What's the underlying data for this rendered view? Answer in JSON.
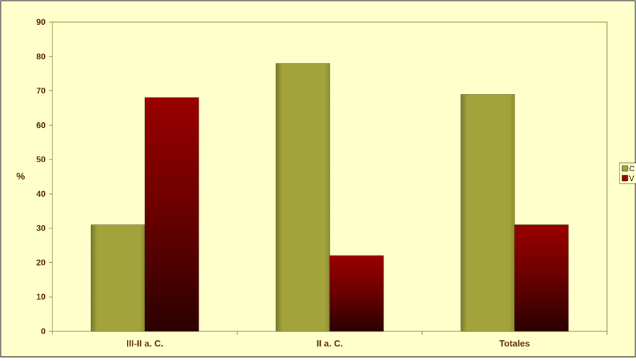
{
  "colors": {
    "background": "#FFFFCC",
    "border": "#000000",
    "axis": "#8B8B3A",
    "text": "#5C2E00",
    "olive": "#A3A33C",
    "olive_dark": "#4F4F1C",
    "red_top": "#9A0000",
    "red_bottom": "#2B0000"
  },
  "chart_data": {
    "type": "bar",
    "ylabel": "%",
    "xlabel": "",
    "ylim": [
      0,
      90
    ],
    "yticks": [
      0,
      10,
      20,
      30,
      40,
      50,
      60,
      70,
      80,
      90
    ],
    "grid": false,
    "legend_position": "right",
    "categories": [
      "III-II a. C.",
      "II a. C.",
      "Totales"
    ],
    "series": [
      {
        "name": "C",
        "values": [
          31,
          78,
          69
        ]
      },
      {
        "name": "V",
        "values": [
          68,
          22,
          31
        ]
      }
    ]
  }
}
